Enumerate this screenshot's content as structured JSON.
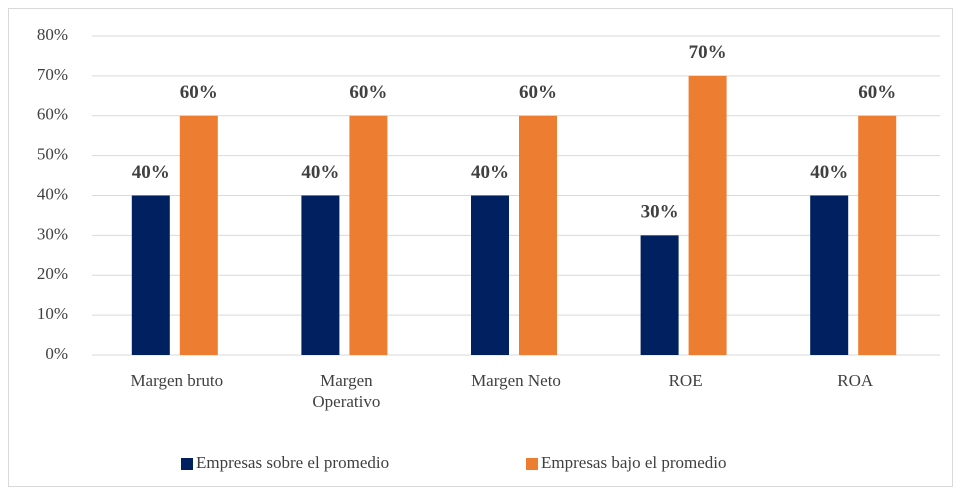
{
  "chart_data": {
    "type": "bar",
    "categories": [
      "Margen bruto",
      "Margen Operativo",
      "Margen Neto",
      "ROE",
      "ROA"
    ],
    "series": [
      {
        "name": "Empresas sobre el promedio",
        "color": "#002060",
        "values": [
          40,
          40,
          40,
          30,
          40
        ],
        "value_labels": [
          "40%",
          "40%",
          "40%",
          "30%",
          "40%"
        ]
      },
      {
        "name": "Empresas bajo el promedio",
        "color": "#ed7d31",
        "values": [
          60,
          60,
          60,
          70,
          60
        ],
        "value_labels": [
          "60%",
          "60%",
          "60%",
          "70%",
          "60%"
        ]
      }
    ],
    "ylim": [
      0,
      80
    ],
    "yticks": [
      {
        "value": 0,
        "label": "0%"
      },
      {
        "value": 10,
        "label": "10%"
      },
      {
        "value": 20,
        "label": "20%"
      },
      {
        "value": 30,
        "label": "30%"
      },
      {
        "value": 40,
        "label": "40%"
      },
      {
        "value": 50,
        "label": "50%"
      },
      {
        "value": 60,
        "label": "60%"
      },
      {
        "value": 70,
        "label": "70%"
      },
      {
        "value": 80,
        "label": "80%"
      }
    ],
    "grid": true,
    "legend": "bottom"
  }
}
